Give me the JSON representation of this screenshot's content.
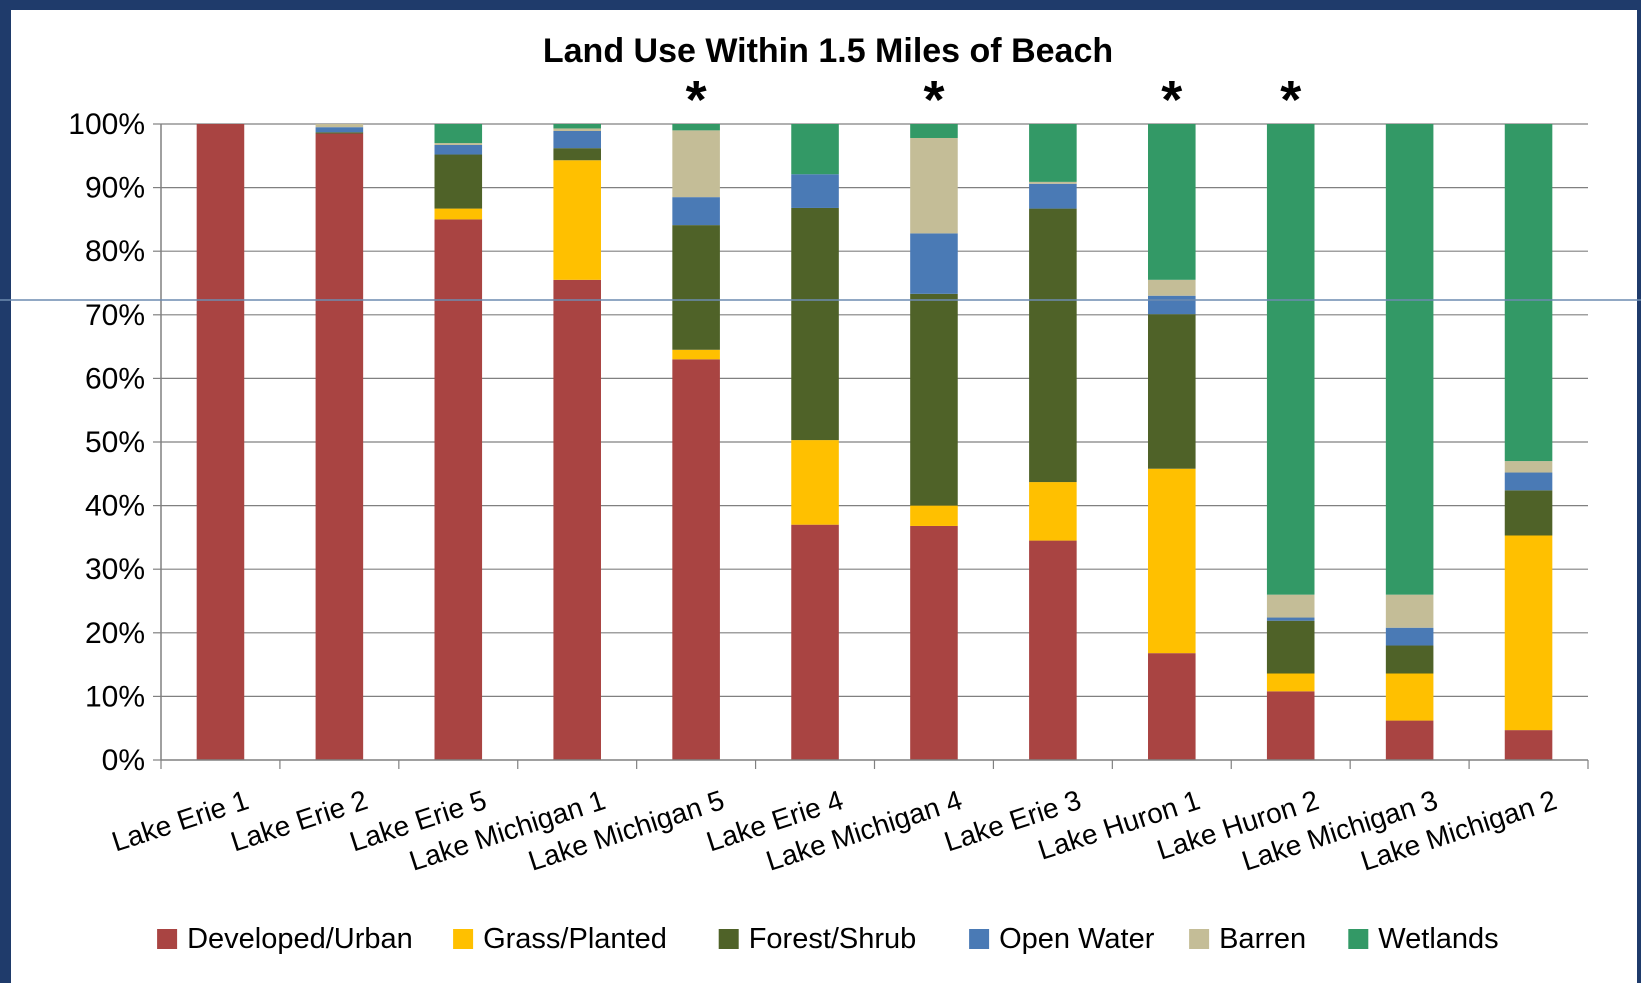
{
  "colors": {
    "developed": "#a94442",
    "grass": "#ffc000",
    "forest": "#4f6228",
    "water": "#4a7ab5",
    "barren": "#c4bd97",
    "wetlands": "#339966",
    "frame": "#1f3b6b",
    "grid": "#808080"
  },
  "chart_data": {
    "type": "bar",
    "stacked": true,
    "percent": true,
    "title": "Land Use Within 1.5 Miles of Beach",
    "xlabel": "",
    "ylabel": "",
    "ylim": [
      0,
      100
    ],
    "yticks": [
      "0%",
      "10%",
      "20%",
      "30%",
      "40%",
      "50%",
      "60%",
      "70%",
      "80%",
      "90%",
      "100%"
    ],
    "categories": [
      "Lake Erie 1",
      "Lake Erie 2",
      "Lake Erie 5",
      "Lake Michigan 1",
      "Lake Michigan 5",
      "Lake Erie 4",
      "Lake Michigan 4",
      "Lake Erie 3",
      "Lake Huron 1",
      "Lake Huron 2",
      "Lake Michigan 3",
      "Lake Michigan 2"
    ],
    "starred": [
      false,
      false,
      false,
      false,
      true,
      false,
      true,
      false,
      true,
      true,
      false,
      false
    ],
    "star_symbol": "*",
    "legend_position": "bottom",
    "grid": true,
    "series": [
      {
        "name": "Developed/Urban",
        "color": "#a94442",
        "values": [
          100,
          98.5,
          85,
          75.5,
          63,
          37,
          36.8,
          34.5,
          16.8,
          10.8,
          6.2,
          4.7
        ]
      },
      {
        "name": "Grass/Planted",
        "color": "#ffc000",
        "values": [
          0,
          0,
          1.7,
          18.8,
          1.5,
          13.3,
          3.2,
          9.2,
          29,
          2.8,
          7.4,
          30.6
        ]
      },
      {
        "name": "Forest/Shrub",
        "color": "#4f6228",
        "values": [
          0,
          0.2,
          8.5,
          1.9,
          19.6,
          36.5,
          33.3,
          43,
          24.3,
          8.3,
          4.4,
          7.1
        ]
      },
      {
        "name": "Open Water",
        "color": "#4a7ab5",
        "values": [
          0,
          0.8,
          1.5,
          2.7,
          4.4,
          5.3,
          9.5,
          3.9,
          2.9,
          0.5,
          2.8,
          2.8
        ]
      },
      {
        "name": "Barren",
        "color": "#c4bd97",
        "values": [
          0,
          0.5,
          0.3,
          0.4,
          10.5,
          0,
          15,
          0.3,
          2.5,
          3.6,
          5.2,
          1.8
        ]
      },
      {
        "name": "Wetlands",
        "color": "#339966",
        "values": [
          0,
          0,
          3,
          0.7,
          1,
          7.9,
          2.2,
          9.1,
          24.5,
          74,
          74,
          53
        ]
      }
    ]
  }
}
